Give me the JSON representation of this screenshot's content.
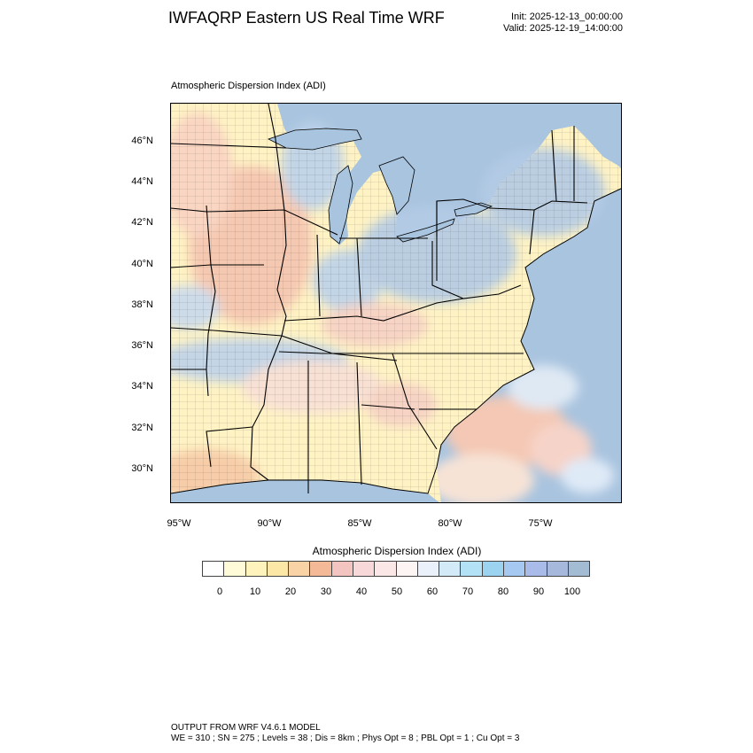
{
  "header": {
    "title": "IWFAQRP Eastern US Real Time WRF",
    "init": "Init: 2025-12-13_00:00:00",
    "valid": "Valid: 2025-12-19_14:00:00"
  },
  "map": {
    "subtitle": "Atmospheric Dispersion Index   (ADI)",
    "lat_labels": [
      "46°N",
      "44°N",
      "42°N",
      "40°N",
      "38°N",
      "36°N",
      "34°N",
      "32°N",
      "30°N"
    ],
    "lon_labels": [
      "95°W",
      "90°W",
      "85°W",
      "80°W",
      "75°W"
    ],
    "colors": {
      "water": "#a9c4df",
      "low": "#fff8c8",
      "mid": "#f6c9b0",
      "high": "#b9cfe6",
      "boundary": "#000000"
    }
  },
  "colorbar": {
    "title": "Atmospheric Dispersion Index  (ADI)",
    "labels": [
      "0",
      "10",
      "20",
      "30",
      "40",
      "50",
      "60",
      "70",
      "80",
      "90",
      "100"
    ],
    "colors": [
      "#ffffff",
      "#fffbd9",
      "#fff3bd",
      "#fde7a6",
      "#f9d3a6",
      "#f4b996",
      "#f4c5c0",
      "#f8d8d8",
      "#fbe8e6",
      "#fdf4f4",
      "#eaf1fb",
      "#d3ebf8",
      "#b3e2f6",
      "#9cd3f1",
      "#a5c9f1",
      "#a9bbe8",
      "#a6b8dc",
      "#a4bbd4"
    ]
  },
  "footer": {
    "line1": "OUTPUT FROM WRF V4.6.1 MODEL",
    "line2": "WE = 310 ; SN = 275 ; Levels = 38 ; Dis = 8km ; Phys Opt = 8 ; PBL Opt = 1 ; Cu Opt = 3"
  }
}
